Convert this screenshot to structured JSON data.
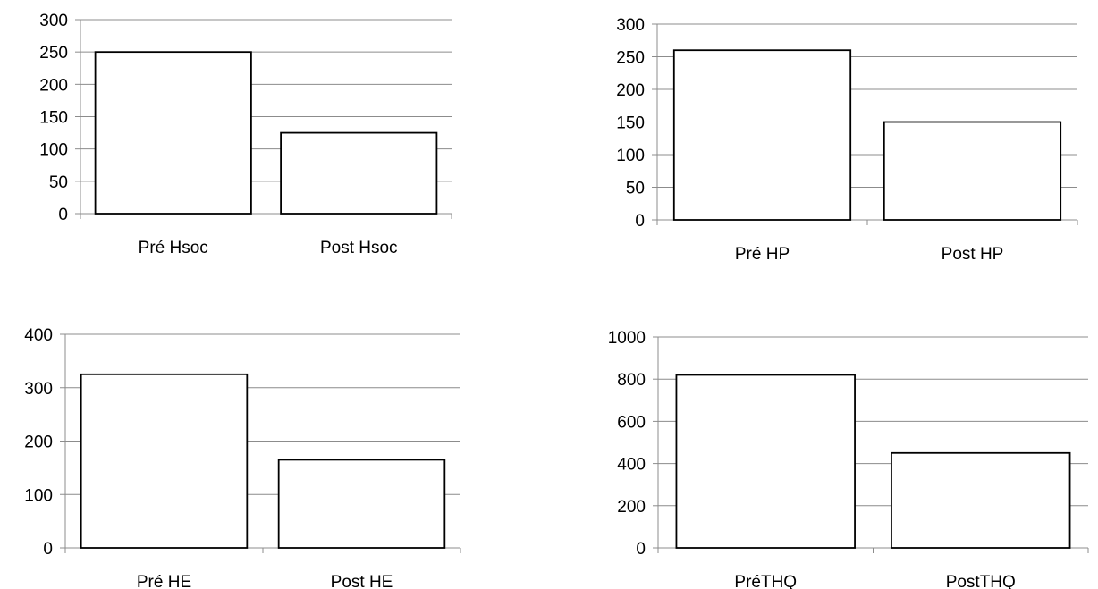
{
  "chart_data": [
    {
      "type": "bar",
      "categories": [
        "Pré Hsoc",
        "Post Hsoc"
      ],
      "values": [
        250,
        125
      ],
      "title": "",
      "xlabel": "",
      "ylabel": "",
      "ylim": [
        0,
        300
      ],
      "yticks": [
        0,
        50,
        100,
        150,
        200,
        250,
        300
      ],
      "grid": true,
      "legend": "none"
    },
    {
      "type": "bar",
      "categories": [
        "Pré HP",
        "Post HP"
      ],
      "values": [
        260,
        150
      ],
      "title": "",
      "xlabel": "",
      "ylabel": "",
      "ylim": [
        0,
        300
      ],
      "yticks": [
        0,
        50,
        100,
        150,
        200,
        250,
        300
      ],
      "grid": true,
      "legend": "none"
    },
    {
      "type": "bar",
      "categories": [
        "Pré HE",
        "Post HE"
      ],
      "values": [
        325,
        165
      ],
      "title": "",
      "xlabel": "",
      "ylabel": "",
      "ylim": [
        0,
        400
      ],
      "yticks": [
        0,
        100,
        200,
        300,
        400
      ],
      "grid": true,
      "legend": "none"
    },
    {
      "type": "bar",
      "categories": [
        "PréTHQ",
        "PostTHQ"
      ],
      "values": [
        820,
        450
      ],
      "title": "",
      "xlabel": "",
      "ylabel": "",
      "ylim": [
        0,
        1000
      ],
      "yticks": [
        0,
        200,
        400,
        600,
        800,
        1000
      ],
      "grid": true,
      "legend": "none"
    }
  ],
  "colors": {
    "bar_fill": "#ffffff",
    "bar_stroke": "#000000",
    "grid": "#8c8c8c"
  }
}
